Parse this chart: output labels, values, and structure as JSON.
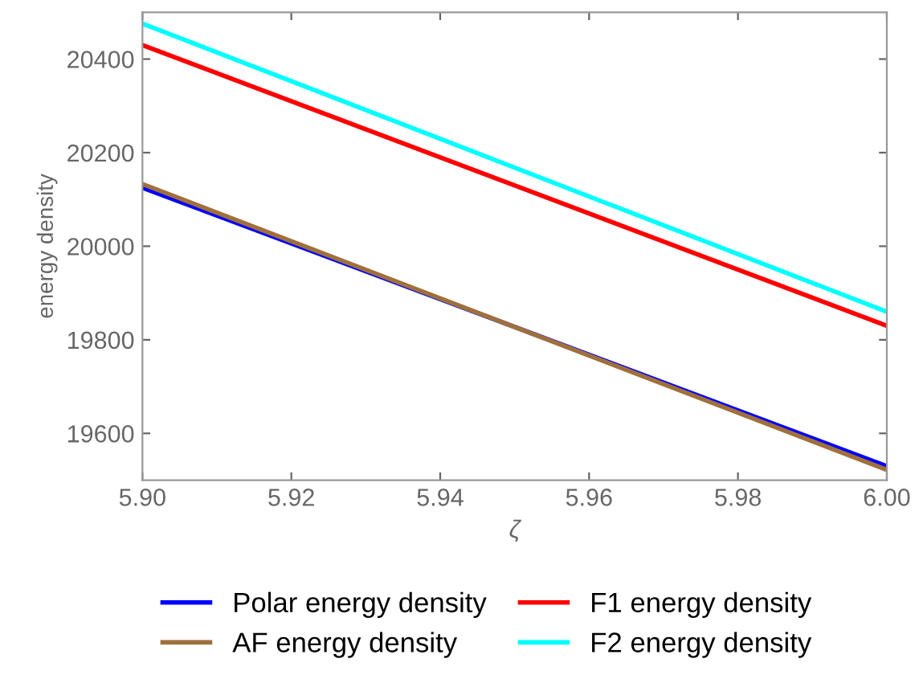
{
  "chart_data": {
    "type": "line",
    "xlabel": "ζ",
    "ylabel": "energy density",
    "xlim": [
      5.9,
      6.0
    ],
    "xticks": [
      {
        "value": 5.9,
        "label": "5.90"
      },
      {
        "value": 5.92,
        "label": "5.92"
      },
      {
        "value": 5.94,
        "label": "5.94"
      },
      {
        "value": 5.96,
        "label": "5.96"
      },
      {
        "value": 5.98,
        "label": "5.98"
      },
      {
        "value": 6.0,
        "label": "6.00"
      }
    ],
    "ylim": [
      19500,
      20500
    ],
    "yticks": [
      19600,
      19800,
      20000,
      20200,
      20400
    ],
    "x": [
      5.9,
      6.0
    ],
    "series": [
      {
        "name": "Polar energy density",
        "color": "#0000ff",
        "values": [
          20125,
          19530
        ]
      },
      {
        "name": "AF energy density",
        "color": "#a0703c",
        "values": [
          20133,
          19522
        ]
      },
      {
        "name": "F1 energy density",
        "color": "#ff0000",
        "values": [
          20430,
          19830
        ]
      },
      {
        "name": "F2 energy density",
        "color": "#00ffff",
        "values": [
          20476,
          19860
        ]
      }
    ],
    "legend": "bottom",
    "grid": false
  }
}
